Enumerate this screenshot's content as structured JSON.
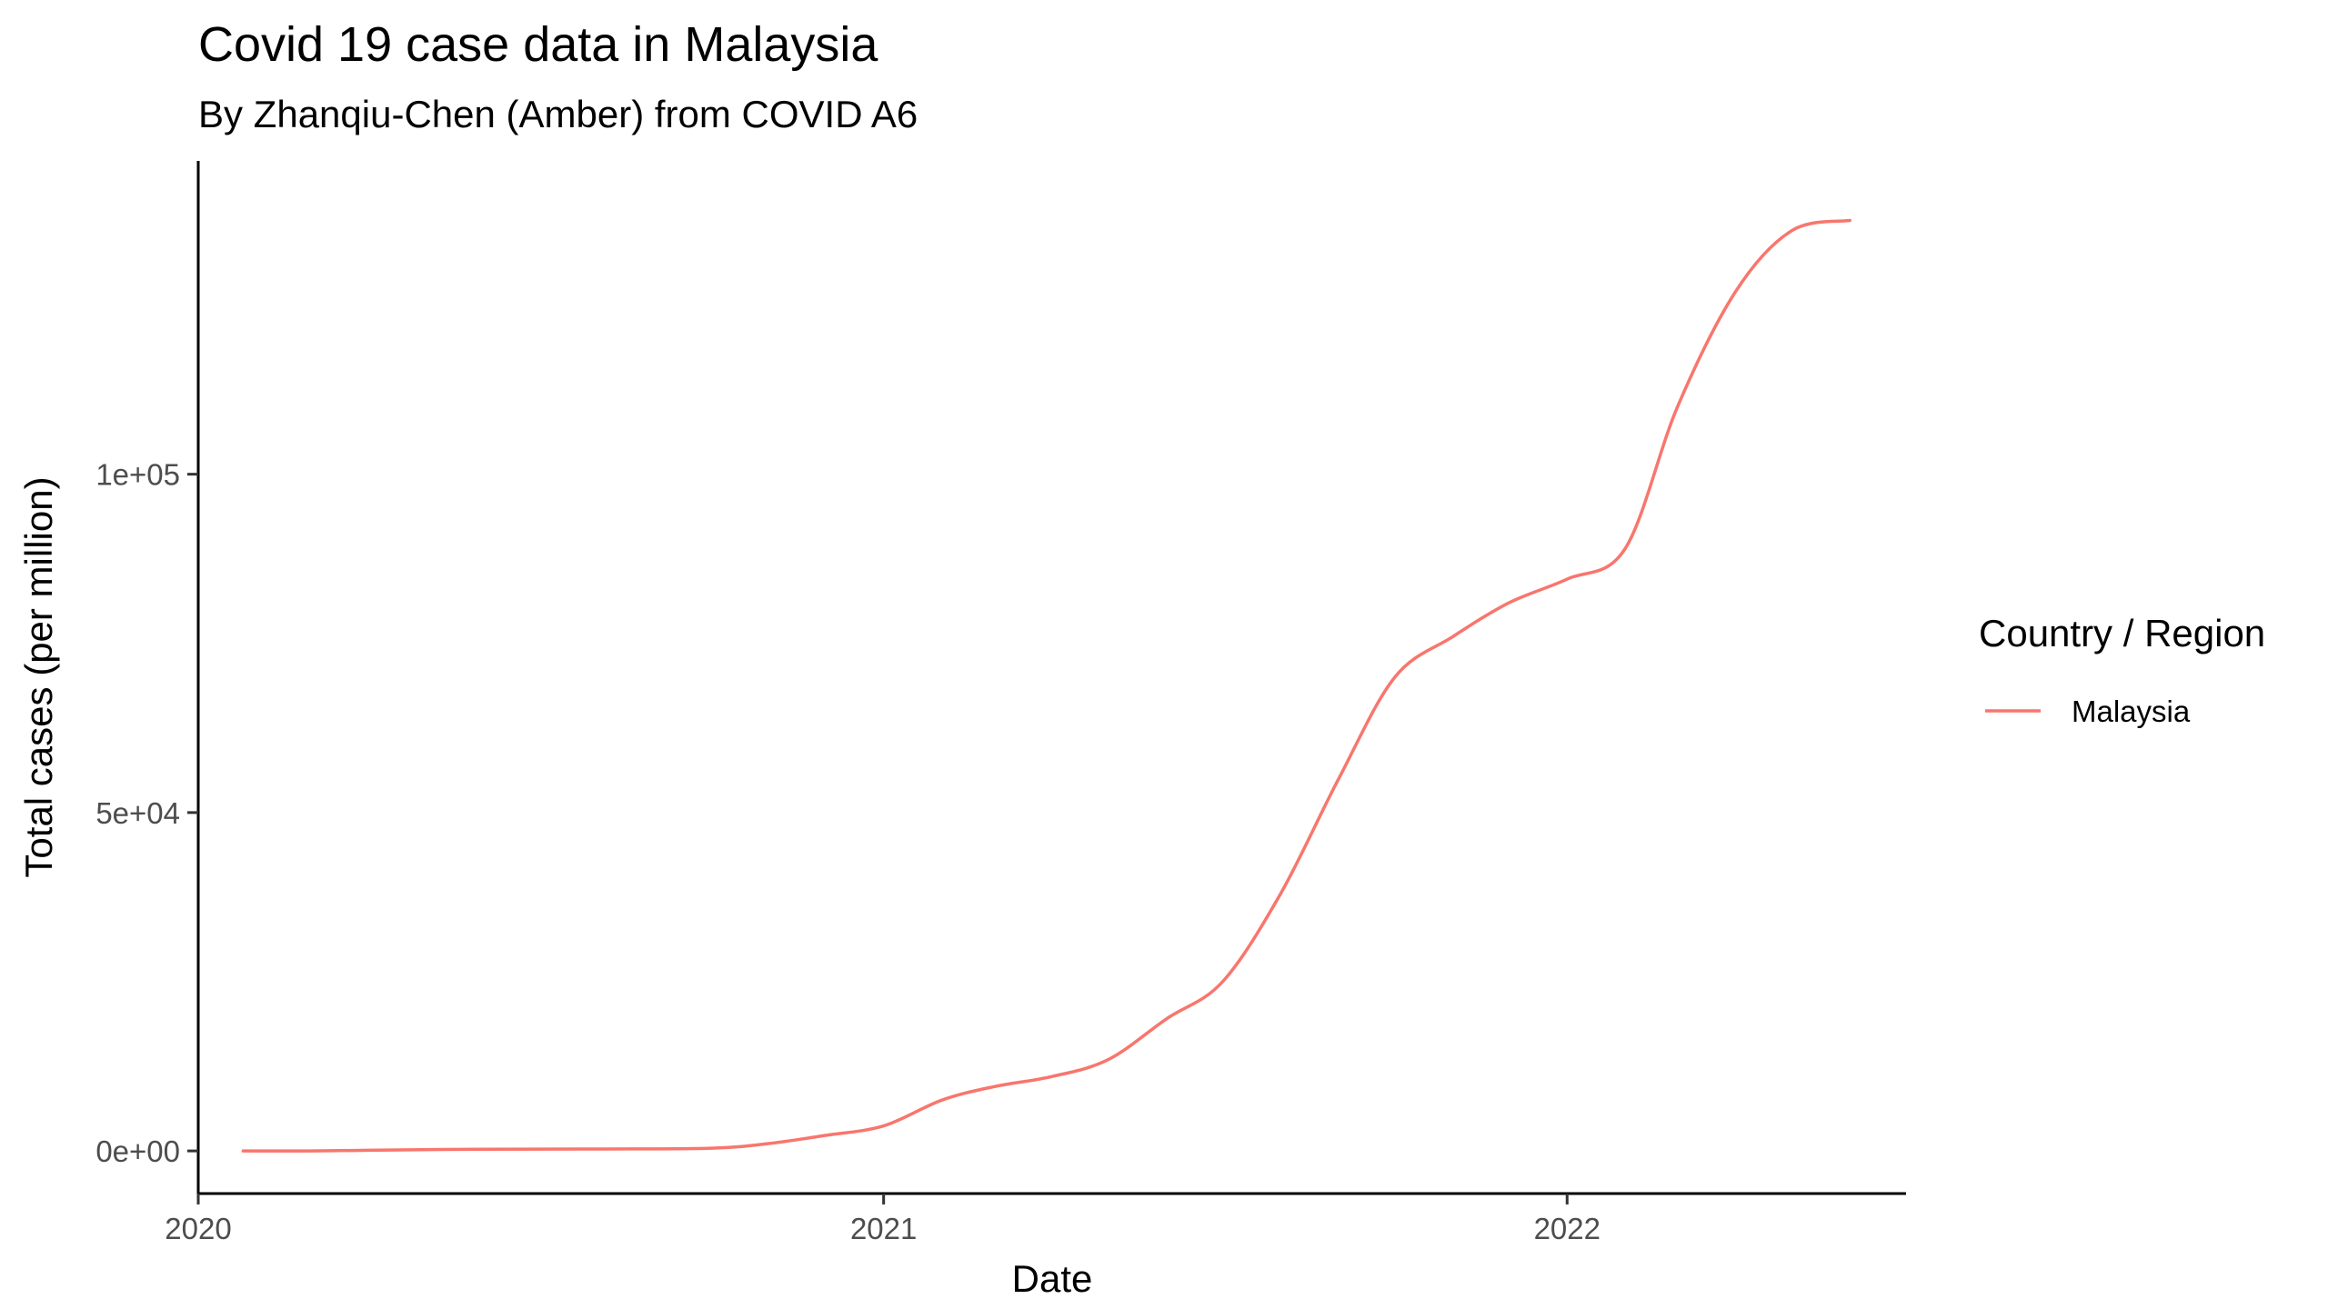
{
  "chart_data": {
    "type": "line",
    "title": "Covid 19 case data in Malaysia",
    "subtitle": "By Zhanqiu-Chen (Amber) from COVID A6",
    "xlabel": "Date",
    "ylabel": "Total cases (per million)",
    "x_ticks": [
      "2020",
      "2021",
      "2022"
    ],
    "y_ticks": [
      "0e+00",
      "5e+04",
      "1e+05"
    ],
    "y_tick_values": [
      0,
      50000,
      100000
    ],
    "xlim": [
      "2020-01-01",
      "2022-07-01"
    ],
    "ylim": [
      0,
      140000
    ],
    "grid": false,
    "legend": {
      "title": "Country / Region",
      "placement": "right",
      "entries": [
        "Malaysia"
      ]
    },
    "series": [
      {
        "name": "Malaysia",
        "color": "#F8766D",
        "points": [
          [
            "2020-01-25",
            0
          ],
          [
            "2020-03-01",
            1
          ],
          [
            "2020-04-01",
            100
          ],
          [
            "2020-06-01",
            250
          ],
          [
            "2020-08-01",
            280
          ],
          [
            "2020-10-01",
            400
          ],
          [
            "2020-11-01",
            1100
          ],
          [
            "2020-12-01",
            2300
          ],
          [
            "2021-01-01",
            3700
          ],
          [
            "2021-02-01",
            7500
          ],
          [
            "2021-03-01",
            9500
          ],
          [
            "2021-04-01",
            11000
          ],
          [
            "2021-05-01",
            13500
          ],
          [
            "2021-06-01",
            19500
          ],
          [
            "2021-07-01",
            25000
          ],
          [
            "2021-08-01",
            38000
          ],
          [
            "2021-09-01",
            55000
          ],
          [
            "2021-10-01",
            70000
          ],
          [
            "2021-11-01",
            76000
          ],
          [
            "2021-12-01",
            81000
          ],
          [
            "2022-01-01",
            84500
          ],
          [
            "2022-02-01",
            89000
          ],
          [
            "2022-03-01",
            110000
          ],
          [
            "2022-04-01",
            127000
          ],
          [
            "2022-05-01",
            136000
          ],
          [
            "2022-06-01",
            137500
          ]
        ]
      }
    ]
  }
}
